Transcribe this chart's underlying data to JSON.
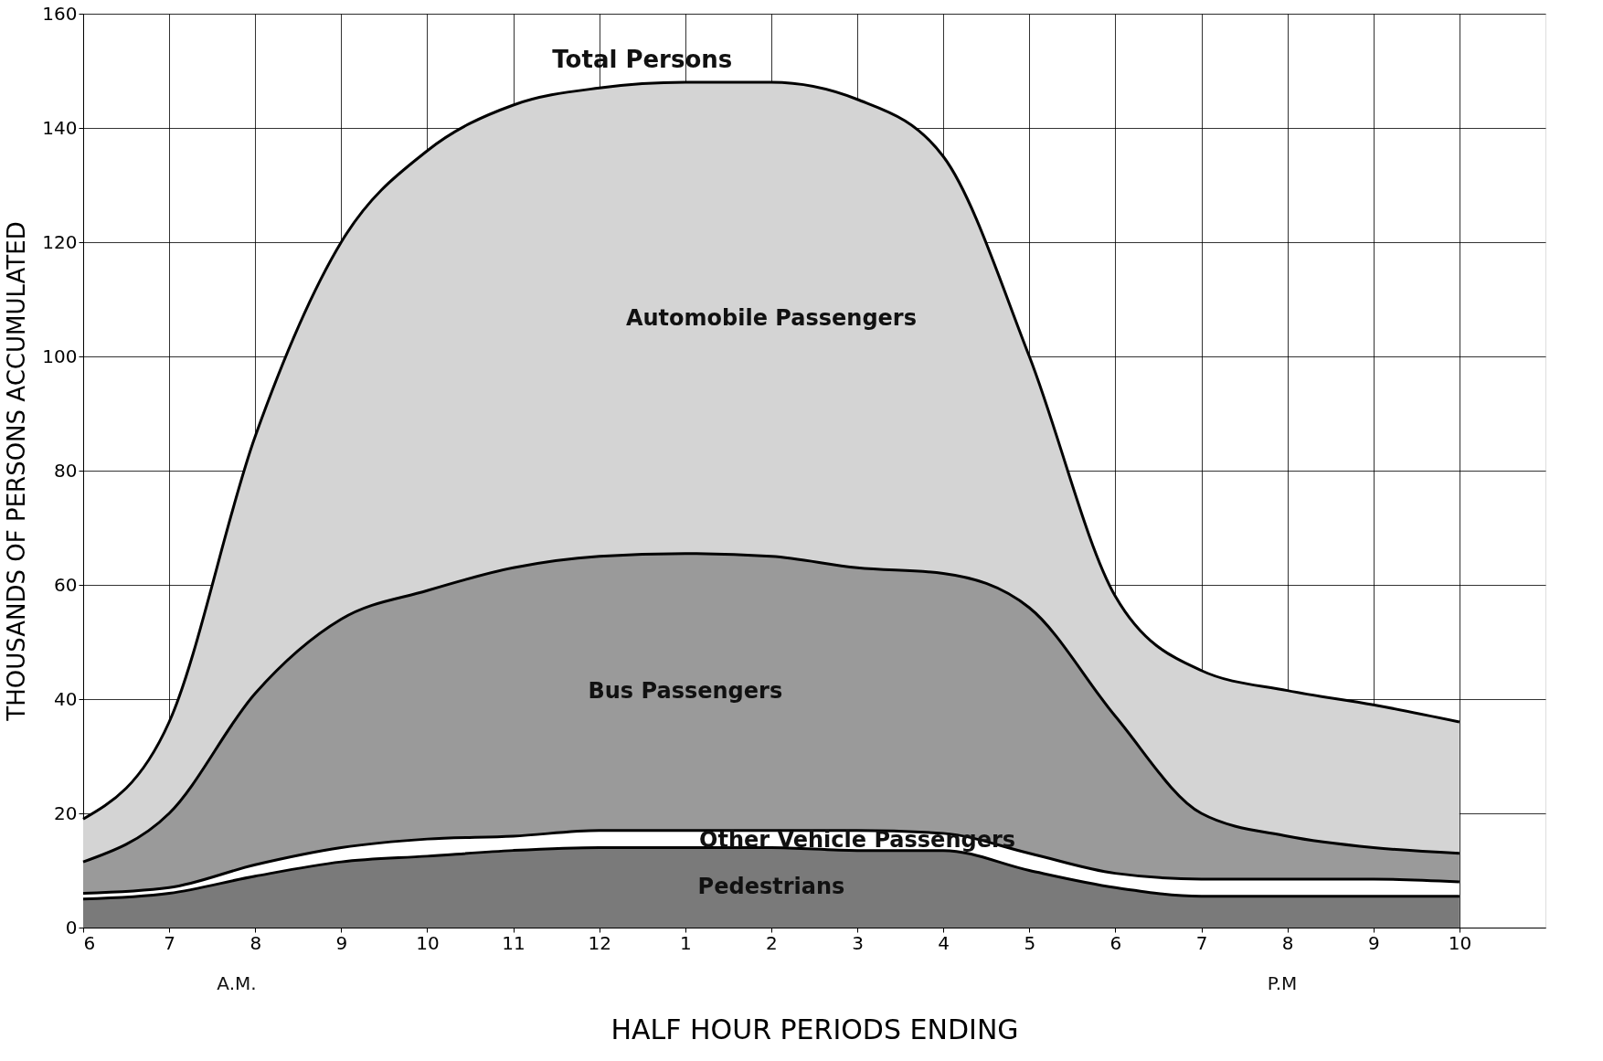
{
  "chart_data": {
    "type": "area",
    "stacked": true,
    "xlabel": "HALF HOUR PERIODS ENDING",
    "ylabel": "THOUSANDS OF PERSONS ACCUMULATED",
    "categories": [
      "6",
      "7",
      "8",
      "9",
      "10",
      "11",
      "12",
      "1",
      "2",
      "3",
      "4",
      "5",
      "6",
      "7",
      "8",
      "9",
      "10"
    ],
    "series": [
      {
        "name": "Pedestrians",
        "color": "#7a7a7a",
        "values": [
          5,
          6,
          9,
          11.5,
          12.5,
          13.5,
          14,
          14,
          14,
          13.5,
          13.5,
          10,
          7,
          5.5,
          5.5,
          5.5,
          5.5
        ]
      },
      {
        "name": "Other Vehicle Passengers",
        "color": "#ffffff",
        "values": [
          1,
          1,
          2,
          2.5,
          3,
          2.5,
          3,
          3,
          3,
          3.5,
          3,
          3,
          2.5,
          3,
          3,
          3,
          2.5
        ]
      },
      {
        "name": "Bus Passengers",
        "color": "#9a9a9a",
        "values": [
          5.5,
          13,
          30,
          40,
          43.5,
          47,
          48,
          48.5,
          48,
          46,
          45.5,
          43,
          27.5,
          11.5,
          7.5,
          5.5,
          5
        ]
      },
      {
        "name": "Automobile Passengers",
        "color": "#d4d4d4",
        "values": [
          7.5,
          16,
          45,
          66,
          77,
          81,
          82,
          82.5,
          83,
          82,
          73,
          44,
          21,
          25,
          25.5,
          25,
          23
        ]
      }
    ],
    "ylim": [
      0,
      160
    ],
    "yticks": [
      0,
      20,
      40,
      60,
      80,
      100,
      120,
      140,
      160
    ],
    "grid": true,
    "annotations": [
      {
        "text": "Total Persons",
        "x": "12",
        "y": 147
      },
      "A.M.",
      "P.M"
    ]
  }
}
